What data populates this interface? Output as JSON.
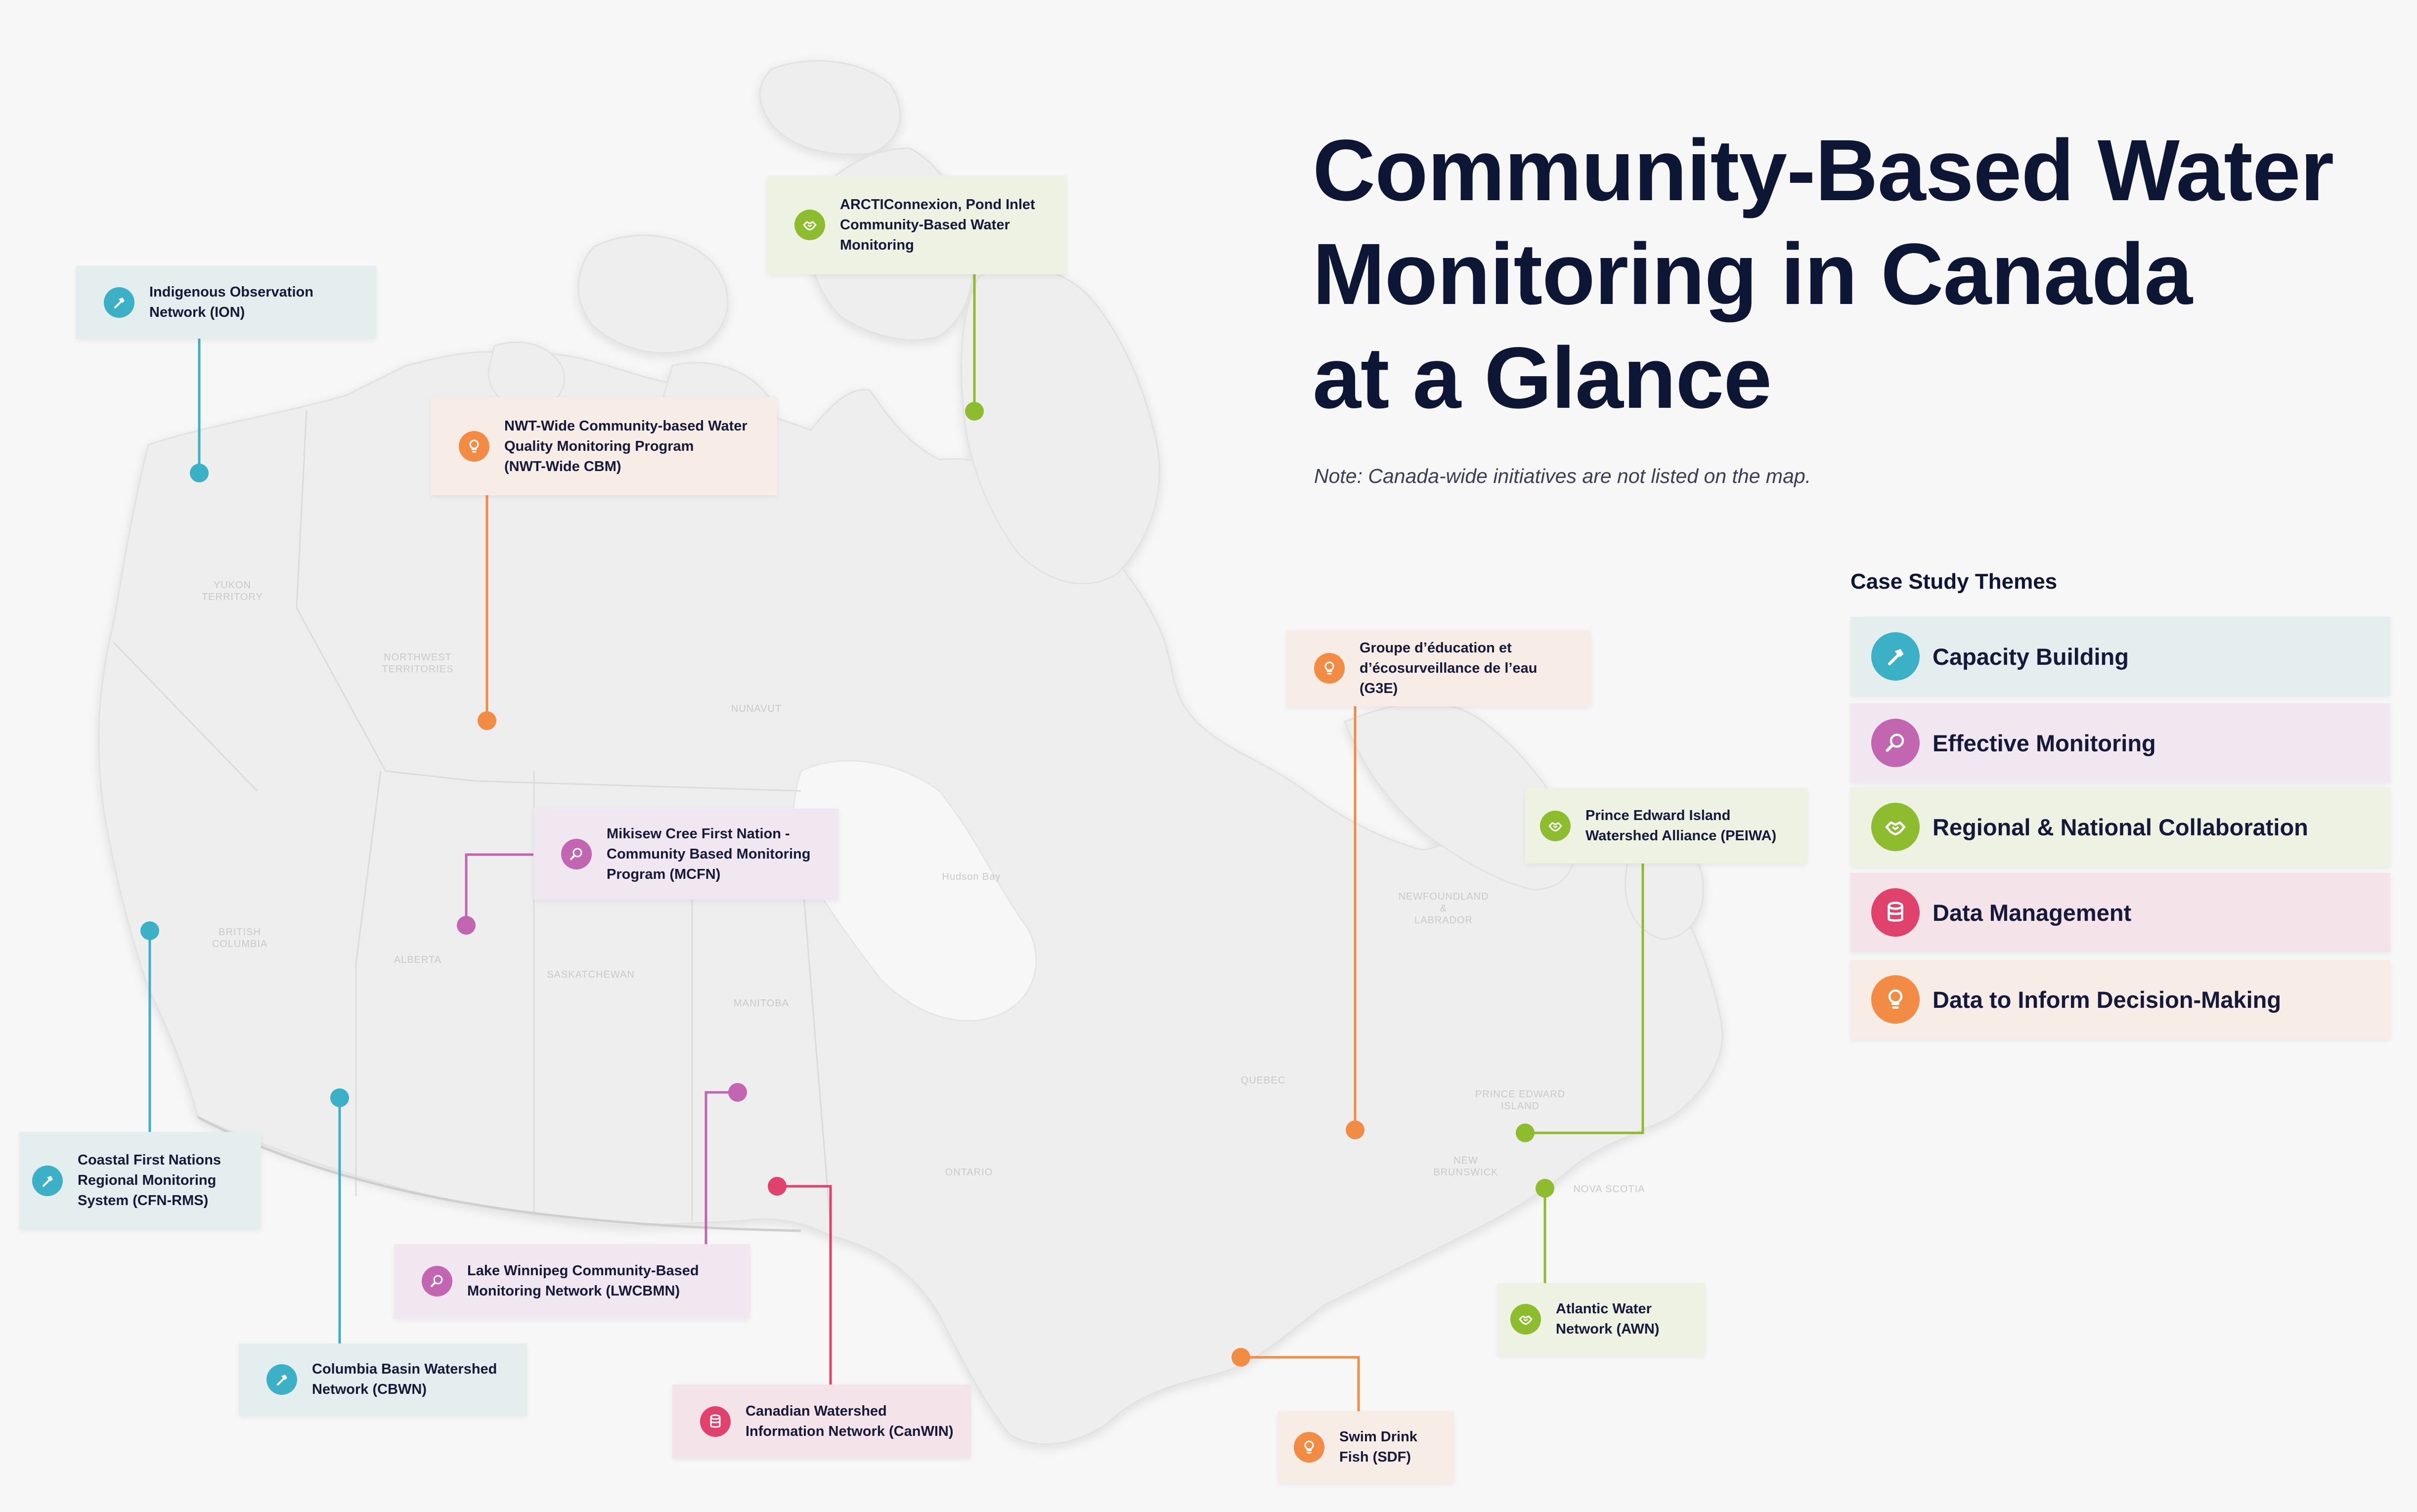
{
  "title_lines": [
    "Community-Based Water",
    "Monitoring in Canada",
    "at a Glance"
  ],
  "note": "Note: Canada-wide initiatives are not listed on the map.",
  "legend": {
    "title": "Case Study Themes",
    "items": [
      {
        "label": "Capacity Building",
        "theme": "capacity",
        "icon": "hammer-icon"
      },
      {
        "label": "Effective Monitoring",
        "theme": "monitoring",
        "icon": "magnifier-icon"
      },
      {
        "label": "Regional & National Collaboration",
        "theme": "collaboration",
        "icon": "handshake-icon"
      },
      {
        "label": "Data Management",
        "theme": "data",
        "icon": "database-icon"
      },
      {
        "label": "Data to Inform Decision-Making",
        "theme": "decision",
        "icon": "lightbulb-icon"
      }
    ]
  },
  "theme_colors": {
    "capacity": "#3bb0c6",
    "monitoring": "#c266b2",
    "collaboration": "#8dbd2f",
    "data": "#e0416d",
    "decision": "#f28c45"
  },
  "region_labels": [
    {
      "lines": [
        "YUKON",
        "TERRITORY"
      ]
    },
    {
      "lines": [
        "NORTHWEST",
        "TERRITORIES"
      ]
    },
    {
      "lines": [
        "NUNAVUT"
      ]
    },
    {
      "lines": [
        "BRITISH",
        "COLUMBIA"
      ]
    },
    {
      "lines": [
        "ALBERTA"
      ]
    },
    {
      "lines": [
        "SASKATCHEWAN"
      ]
    },
    {
      "lines": [
        "MANITOBA"
      ]
    },
    {
      "lines": [
        "ONTARIO"
      ]
    },
    {
      "lines": [
        "QUEBEC"
      ]
    },
    {
      "lines": [
        "NEWFOUNDLAND",
        "&",
        "LABRADOR"
      ]
    },
    {
      "lines": [
        "Hudson Bay"
      ]
    },
    {
      "lines": [
        "PRINCE EDWARD",
        "ISLAND"
      ]
    },
    {
      "lines": [
        "NEW",
        "BRUNSWICK"
      ]
    },
    {
      "lines": [
        "NOVA SCOTIA"
      ]
    }
  ],
  "initiatives": [
    {
      "id": "arcticonnexion",
      "lines": [
        "ARCTIConnexion, Pond Inlet",
        "Community-Based Water",
        "Monitoring"
      ],
      "theme": "collaboration"
    },
    {
      "id": "ion",
      "lines": [
        "Indigenous Observation",
        "Network (ION)"
      ],
      "theme": "capacity"
    },
    {
      "id": "nwt-cbm",
      "lines": [
        "NWT-Wide Community-based Water",
        "Quality Monitoring Program",
        "(NWT-Wide CBM)"
      ],
      "theme": "decision"
    },
    {
      "id": "mcfn",
      "lines": [
        "Mikisew Cree First Nation -",
        "Community Based Monitoring",
        "Program (MCFN)"
      ],
      "theme": "monitoring"
    },
    {
      "id": "cfn-rms",
      "lines": [
        "Coastal First Nations",
        "Regional Monitoring",
        "System (CFN-RMS)"
      ],
      "theme": "capacity"
    },
    {
      "id": "cbwn",
      "lines": [
        "Columbia Basin Watershed",
        "Network (CBWN)"
      ],
      "theme": "capacity"
    },
    {
      "id": "lwcbmn",
      "lines": [
        "Lake Winnipeg Community-Based",
        "Monitoring Network (LWCBMN)"
      ],
      "theme": "monitoring"
    },
    {
      "id": "canwin",
      "lines": [
        "Canadian Watershed",
        "Information Network (CanWIN)"
      ],
      "theme": "data"
    },
    {
      "id": "g3e",
      "lines": [
        "Groupe d’éducation et",
        "d’écosurveillance de l’eau (G3E)"
      ],
      "theme": "decision"
    },
    {
      "id": "peiwa",
      "lines": [
        "Prince Edward Island",
        "Watershed Alliance (PEIWA)"
      ],
      "theme": "collaboration"
    },
    {
      "id": "awn",
      "lines": [
        "Atlantic Water",
        "Network (AWN)"
      ],
      "theme": "collaboration"
    },
    {
      "id": "sdf",
      "lines": [
        "Swim Drink",
        "Fish (SDF)"
      ],
      "theme": "decision"
    }
  ]
}
